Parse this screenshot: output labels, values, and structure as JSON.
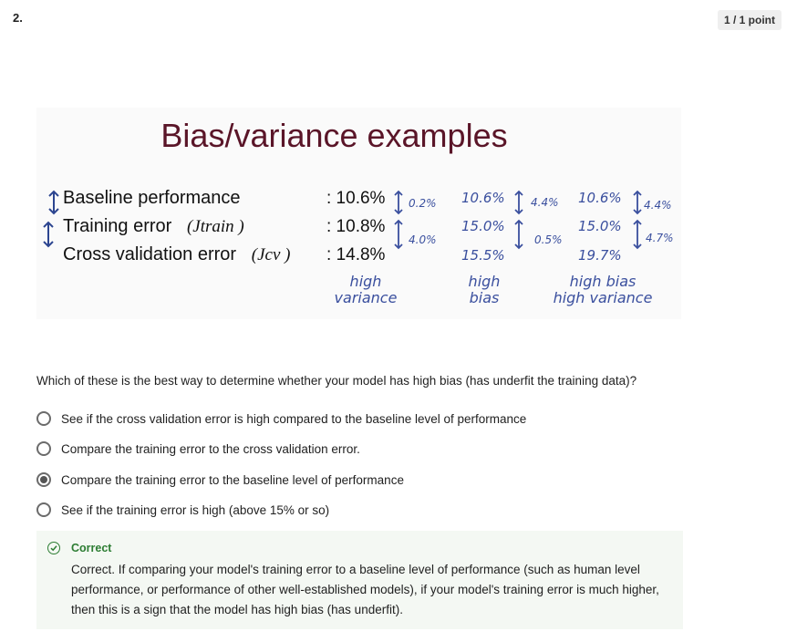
{
  "question_number": "2.",
  "score_badge": "1 / 1 point",
  "slide": {
    "title": "Bias/variance examples",
    "rows": [
      {
        "label": "Baseline performance",
        "math": "",
        "suffix": ""
      },
      {
        "label": "Training error",
        "math": "(Jtrain )",
        "suffix": ""
      },
      {
        "label": "Cross validation error",
        "math": "(Jcv )",
        "suffix": ":"
      }
    ],
    "col1": {
      "values": [
        ": 10.6%",
        ": 10.8%",
        "14.8%"
      ],
      "gap_top": "0.2%",
      "gap_bottom": "4.0%",
      "caption": [
        "high",
        "variance"
      ]
    },
    "col2": {
      "values": [
        "10.6%",
        "15.0%",
        "15.5%"
      ],
      "gap_top": "4.4%",
      "gap_bottom": "0.5%",
      "caption": [
        "high",
        "bias"
      ]
    },
    "col3": {
      "values": [
        "10.6%",
        "15.0%",
        "19.7%"
      ],
      "gap_top": "4.4%",
      "gap_bottom": "4.7%",
      "caption": [
        "high bias",
        "high variance"
      ]
    },
    "accent_color": "#5a1528",
    "annotation_color": "#3a4f9e"
  },
  "question": "Which of these is the best way to determine whether your model has high bias (has underfit the training data)?",
  "options": [
    {
      "label": "See if the cross validation error is high compared to the baseline level of performance",
      "selected": false
    },
    {
      "label": "Compare the training error to the cross validation error.",
      "selected": false
    },
    {
      "label": "Compare the training error to the baseline level of performance",
      "selected": true
    },
    {
      "label": "See if the training error is high (above 15% or so)",
      "selected": false
    }
  ],
  "feedback": {
    "status": "Correct",
    "text": "Correct. If comparing your model's training error to a baseline level of performance (such as human level performance, or performance of other well-established models), if your model's training error is much higher, then this is a sign that the model has high bias (has underfit).",
    "color": "#2d7d33",
    "icon": "check-circle-icon"
  }
}
